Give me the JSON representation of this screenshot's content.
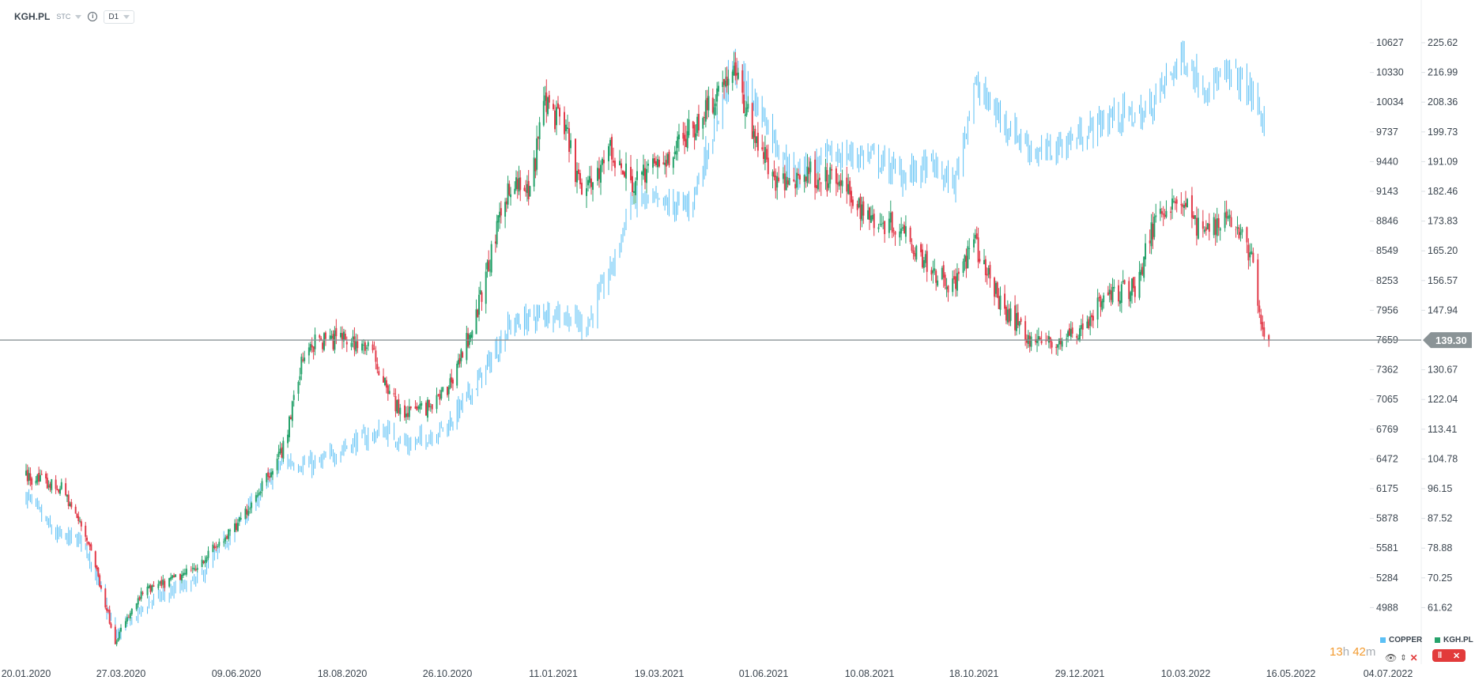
{
  "header": {
    "symbol": "KGH.PL",
    "chart_type": "STC",
    "info_icon": "info-icon",
    "timeframe": "D1"
  },
  "price_line": {
    "value": "139.30",
    "color": "#8a9396"
  },
  "timer": {
    "hours": "13",
    "h": "h",
    "minutes": "42",
    "m": "m"
  },
  "legend": [
    {
      "name": "COPPER",
      "color": "#5bc0f5"
    },
    {
      "name": "KGH.PL",
      "color": "#26a26b"
    }
  ],
  "legend_controls": {
    "eye": "eye-icon",
    "move": "up-down-arrows-icon",
    "close": "close-icon",
    "candle": "candlestick-icon"
  },
  "chart_data": {
    "type": "ohlc",
    "left_axis": {
      "ticks": [
        "10627",
        "10330",
        "10034",
        "9737",
        "9440",
        "9143",
        "8846",
        "8549",
        "8253",
        "7956",
        "7659",
        "7362",
        "7065",
        "6769",
        "6472",
        "6175",
        "5878",
        "5581",
        "5284",
        "4988"
      ]
    },
    "right_axis": {
      "ticks": [
        "225.62",
        "216.99",
        "208.36",
        "199.73",
        "191.09",
        "182.46",
        "173.83",
        "165.20",
        "156.57",
        "147.94",
        "139.30",
        "130.67",
        "122.04",
        "113.41",
        "104.78",
        "96.15",
        "87.52",
        "78.88",
        "70.25",
        "61.62"
      ]
    },
    "x_ticks": [
      "20.01.2020",
      "27.03.2020",
      "09.06.2020",
      "18.08.2020",
      "26.10.2020",
      "11.01.2021",
      "19.03.2021",
      "01.06.2021",
      "10.08.2021",
      "18.10.2021",
      "29.12.2021",
      "10.03.2022",
      "16.05.2022",
      "04.07.2022"
    ],
    "series": [
      {
        "name": "COPPER",
        "axis": "left",
        "style": "ohlc",
        "color": "#5bc0f5",
        "points": [
          [
            "2020-01-20",
            6100
          ],
          [
            "2020-02-10",
            5700
          ],
          [
            "2020-03-01",
            5650
          ],
          [
            "2020-03-23",
            4700
          ],
          [
            "2020-04-15",
            5050
          ],
          [
            "2020-05-15",
            5250
          ],
          [
            "2020-06-09",
            5800
          ],
          [
            "2020-07-10",
            6450
          ],
          [
            "2020-08-01",
            6400
          ],
          [
            "2020-08-20",
            6600
          ],
          [
            "2020-09-15",
            6750
          ],
          [
            "2020-10-01",
            6600
          ],
          [
            "2020-10-26",
            6800
          ],
          [
            "2020-11-20",
            7300
          ],
          [
            "2020-12-10",
            7800
          ],
          [
            "2021-01-11",
            7950
          ],
          [
            "2021-02-01",
            7800
          ],
          [
            "2021-02-20",
            8500
          ],
          [
            "2021-03-01",
            9100
          ],
          [
            "2021-03-19",
            9000
          ],
          [
            "2021-04-10",
            9000
          ],
          [
            "2021-05-10",
            10400
          ],
          [
            "2021-06-01",
            9900
          ],
          [
            "2021-06-20",
            9300
          ],
          [
            "2021-07-15",
            9500
          ],
          [
            "2021-08-10",
            9500
          ],
          [
            "2021-09-01",
            9300
          ],
          [
            "2021-09-20",
            9400
          ],
          [
            "2021-10-05",
            9200
          ],
          [
            "2021-10-18",
            10200
          ],
          [
            "2021-11-10",
            9800
          ],
          [
            "2021-12-01",
            9500
          ],
          [
            "2021-12-29",
            9700
          ],
          [
            "2022-01-20",
            9900
          ],
          [
            "2022-02-10",
            9900
          ],
          [
            "2022-03-08",
            10500
          ],
          [
            "2022-03-20",
            10200
          ],
          [
            "2022-04-10",
            10300
          ],
          [
            "2022-04-22",
            10100
          ],
          [
            "2022-04-29",
            9800
          ]
        ]
      },
      {
        "name": "KGH.PL",
        "axis": "right",
        "style": "candlestick",
        "up_color": "#26a26b",
        "down_color": "#e23b4a",
        "points": [
          [
            "2020-01-20",
            100
          ],
          [
            "2020-02-15",
            96
          ],
          [
            "2020-03-05",
            80
          ],
          [
            "2020-03-23",
            52
          ],
          [
            "2020-04-10",
            66
          ],
          [
            "2020-05-10",
            72
          ],
          [
            "2020-06-09",
            85
          ],
          [
            "2020-07-10",
            108
          ],
          [
            "2020-07-25",
            138
          ],
          [
            "2020-08-18",
            140
          ],
          [
            "2020-09-05",
            137
          ],
          [
            "2020-09-25",
            118
          ],
          [
            "2020-10-15",
            120
          ],
          [
            "2020-10-26",
            125
          ],
          [
            "2020-11-15",
            145
          ],
          [
            "2020-12-10",
            185
          ],
          [
            "2020-12-25",
            182
          ],
          [
            "2021-01-05",
            210
          ],
          [
            "2021-01-20",
            198
          ],
          [
            "2021-01-30",
            180
          ],
          [
            "2021-02-15",
            195
          ],
          [
            "2021-03-01",
            185
          ],
          [
            "2021-03-19",
            190
          ],
          [
            "2021-04-10",
            200
          ],
          [
            "2021-05-10",
            218
          ],
          [
            "2021-05-25",
            200
          ],
          [
            "2021-06-10",
            184
          ],
          [
            "2021-07-01",
            188
          ],
          [
            "2021-07-20",
            185
          ],
          [
            "2021-08-10",
            175
          ],
          [
            "2021-09-01",
            172
          ],
          [
            "2021-09-20",
            160
          ],
          [
            "2021-10-05",
            155
          ],
          [
            "2021-10-18",
            168
          ],
          [
            "2021-11-05",
            150
          ],
          [
            "2021-11-25",
            140
          ],
          [
            "2021-12-10",
            138
          ],
          [
            "2021-12-29",
            142
          ],
          [
            "2022-01-15",
            152
          ],
          [
            "2022-02-05",
            155
          ],
          [
            "2022-02-20",
            178
          ],
          [
            "2022-03-08",
            180
          ],
          [
            "2022-03-20",
            170
          ],
          [
            "2022-04-05",
            176
          ],
          [
            "2022-04-15",
            170
          ],
          [
            "2022-04-22",
            162
          ],
          [
            "2022-04-28",
            140
          ],
          [
            "2022-05-02",
            139.3
          ]
        ]
      }
    ]
  }
}
